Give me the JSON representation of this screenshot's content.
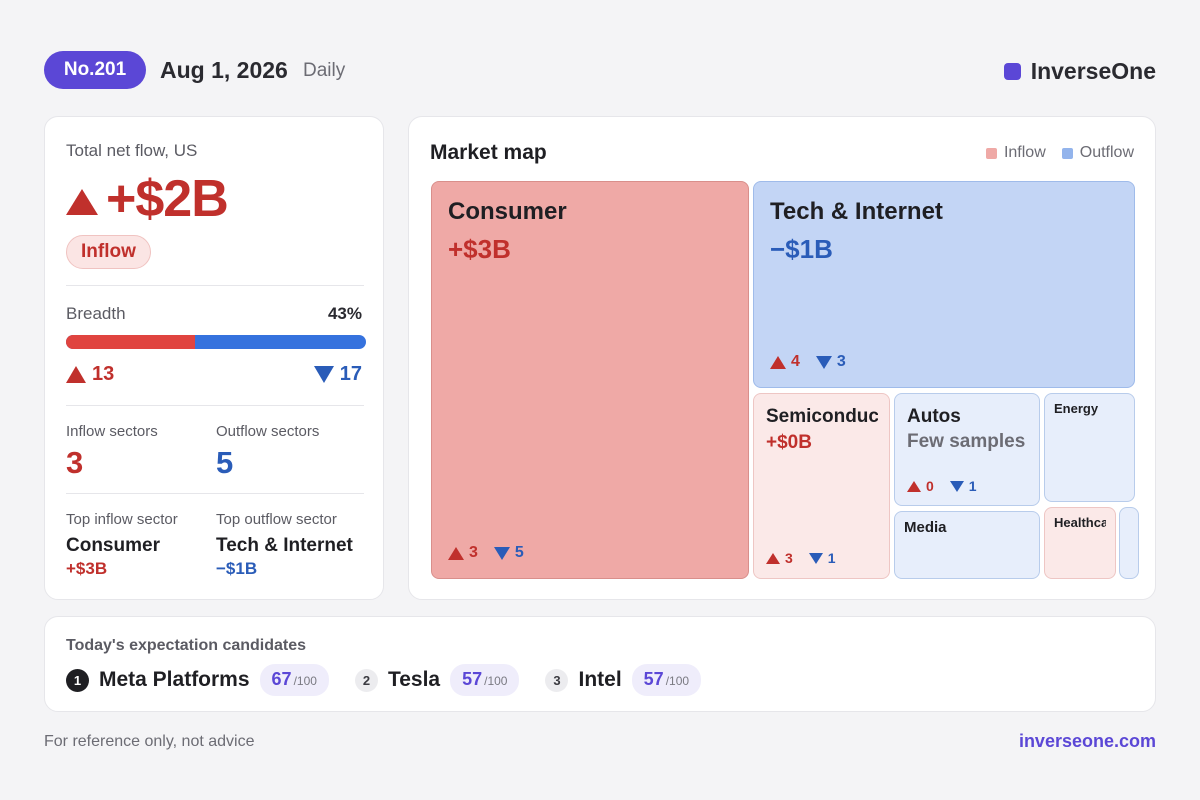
{
  "header": {
    "issue": "No.201",
    "date": "Aug 1, 2026",
    "frequency": "Daily",
    "brand": "InverseOne",
    "brand_color": "#5b47d6"
  },
  "summary": {
    "label": "Total net flow, US",
    "net_flow": "+$2B",
    "direction": "Inflow",
    "breadth_label": "Breadth",
    "breadth_pct": "43%",
    "breadth_fraction": 0.43,
    "advancers": "13",
    "decliners": "17",
    "inflow_sectors_label": "Inflow sectors",
    "inflow_sectors": "3",
    "outflow_sectors_label": "Outflow sectors",
    "outflow_sectors": "5",
    "top_inflow_label": "Top inflow sector",
    "top_inflow_name": "Consumer",
    "top_inflow_value": "+$3B",
    "top_outflow_label": "Top outflow sector",
    "top_outflow_name": "Tech & Internet",
    "top_outflow_value": "−$1B"
  },
  "market_map": {
    "title": "Market map",
    "legend_inflow": "Inflow",
    "legend_outflow": "Outflow",
    "inflow_color": "#efa9a6",
    "outflow_color": "#9fbbea",
    "tiles": {
      "consumer": {
        "name": "Consumer",
        "value": "+$3B",
        "up": "3",
        "down": "5"
      },
      "tech": {
        "name": "Tech & Internet",
        "value": "−$1B",
        "up": "4",
        "down": "3"
      },
      "semi": {
        "name": "Semiconduc",
        "value": "+$0B",
        "up": "3",
        "down": "1"
      },
      "autos": {
        "name": "Autos",
        "note": "Few samples",
        "up": "0",
        "down": "1"
      },
      "energy": {
        "name": "Energy"
      },
      "media": {
        "name": "Media"
      },
      "healthcare": {
        "name": "Healthca"
      }
    }
  },
  "candidates": {
    "title": "Today's expectation candidates",
    "items": [
      {
        "rank": "1",
        "name": "Meta Platforms",
        "score": "67",
        "max": "/100"
      },
      {
        "rank": "2",
        "name": "Tesla",
        "score": "57",
        "max": "/100"
      },
      {
        "rank": "3",
        "name": "Intel",
        "score": "57",
        "max": "/100"
      }
    ]
  },
  "footer": {
    "note": "For reference only, not advice",
    "url": "inverseone.com"
  }
}
